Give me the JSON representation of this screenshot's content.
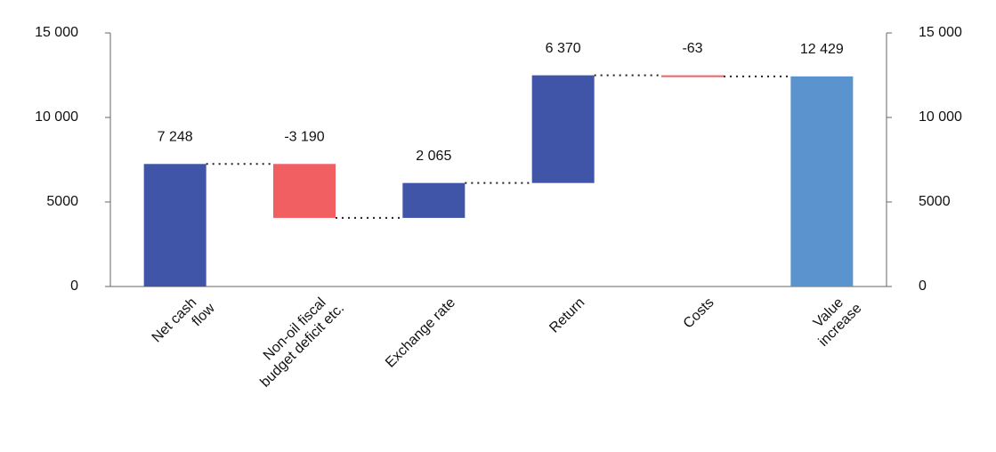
{
  "chart_data": {
    "type": "waterfall",
    "categories": [
      "Net cash\nflow",
      "Non-oil fiscal\nbudget deficit etc.",
      "Exchange rate",
      "Return",
      "Costs",
      "Value\nincrease"
    ],
    "values": [
      7248,
      -3190,
      2065,
      6370,
      -63,
      12429
    ],
    "value_labels": [
      "7 248",
      "-3 190",
      "2 065",
      "6 370",
      "-63",
      "12 429"
    ],
    "measure": [
      "relative",
      "relative",
      "relative",
      "relative",
      "relative",
      "total"
    ],
    "increase_color": "#4055a8",
    "decrease_color": "#f25f63",
    "total_color": "#5b93cf",
    "ylim": [
      0,
      15000
    ],
    "yticks": [
      0,
      5000,
      {
        "value": 10000,
        "label": "10 000"
      },
      {
        "value": 15000,
        "label": "15 000"
      }
    ],
    "y2lim": [
      0,
      15000
    ],
    "y2ticks": [
      0,
      5000,
      {
        "value": 10000,
        "label": "10 000"
      },
      {
        "value": 15000,
        "label": "15 000"
      }
    ],
    "connectors": true
  }
}
